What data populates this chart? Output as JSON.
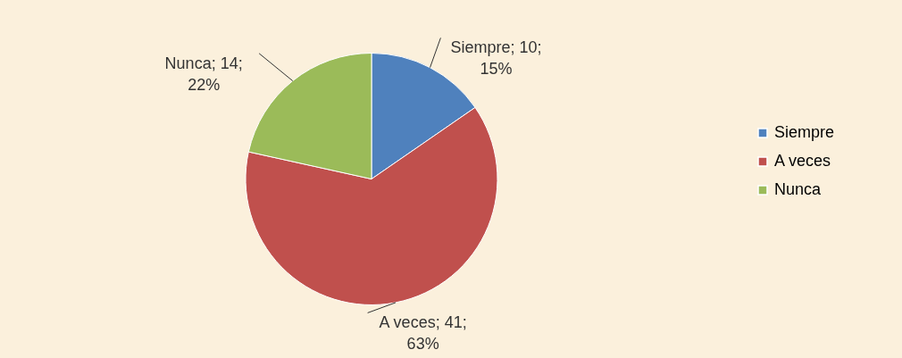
{
  "chart_data": {
    "type": "pie",
    "categories": [
      "Siempre",
      "A veces",
      "Nunca"
    ],
    "values": [
      10,
      41,
      14
    ],
    "colors": [
      "#4f81bd",
      "#c0504d",
      "#9bbb59"
    ],
    "value_labels": [
      "Siempre; 10; 15%",
      "A veces; 41; 63%",
      "Nunca; 14; 22%"
    ],
    "legend": "right"
  }
}
